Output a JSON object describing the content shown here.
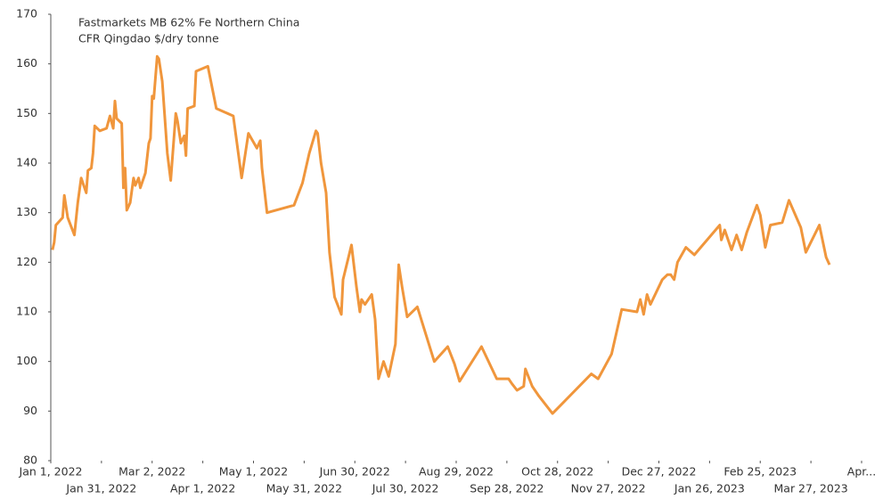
{
  "chart_data": {
    "type": "line",
    "title": "Fastmarkets MB 62% Fe Northern China",
    "subtitle": "CFR Qingdao $/dry tonne",
    "x": [
      "2022-01-02",
      "2022-01-03",
      "2022-01-04",
      "2022-01-08",
      "2022-01-09",
      "2022-01-11",
      "2022-01-15",
      "2022-01-17",
      "2022-01-19",
      "2022-01-22",
      "2022-01-23",
      "2022-01-25",
      "2022-01-26",
      "2022-01-27",
      "2022-01-30",
      "2022-02-03",
      "2022-02-05",
      "2022-02-07",
      "2022-02-08",
      "2022-02-09",
      "2022-02-12",
      "2022-02-13",
      "2022-02-14",
      "2022-02-15",
      "2022-02-17",
      "2022-02-19",
      "2022-02-20",
      "2022-02-22",
      "2022-02-23",
      "2022-02-26",
      "2022-02-28",
      "2022-03-01",
      "2022-03-02",
      "2022-03-03",
      "2022-03-05",
      "2022-03-06",
      "2022-03-08",
      "2022-03-11",
      "2022-03-13",
      "2022-03-16",
      "2022-03-17",
      "2022-03-19",
      "2022-03-21",
      "2022-03-22",
      "2022-03-23",
      "2022-03-27",
      "2022-03-28",
      "2022-04-04",
      "2022-04-09",
      "2022-04-19",
      "2022-04-24",
      "2022-04-28",
      "2022-05-03",
      "2022-05-05",
      "2022-05-06",
      "2022-05-09",
      "2022-05-25",
      "2022-05-30",
      "2022-06-03",
      "2022-06-07",
      "2022-06-08",
      "2022-06-10",
      "2022-06-13",
      "2022-06-15",
      "2022-06-18",
      "2022-06-22",
      "2022-06-23",
      "2022-06-28",
      "2022-07-01",
      "2022-07-03",
      "2022-07-04",
      "2022-07-06",
      "2022-07-10",
      "2022-07-12",
      "2022-07-14",
      "2022-07-17",
      "2022-07-18",
      "2022-07-20",
      "2022-07-24",
      "2022-07-26",
      "2022-07-28",
      "2022-07-31",
      "2022-08-06",
      "2022-08-16",
      "2022-08-24",
      "2022-08-28",
      "2022-08-31",
      "2022-09-13",
      "2022-09-22",
      "2022-09-29",
      "2022-10-01",
      "2022-10-04",
      "2022-10-08",
      "2022-10-09",
      "2022-10-13",
      "2022-10-17",
      "2022-10-25",
      "2022-11-17",
      "2022-11-21",
      "2022-11-29",
      "2022-12-05",
      "2022-12-14",
      "2022-12-16",
      "2022-12-18",
      "2022-12-20",
      "2022-12-22",
      "2022-12-29",
      "2023-01-01",
      "2023-01-03",
      "2023-01-05",
      "2023-01-07",
      "2023-01-12",
      "2023-01-17",
      "2023-02-01",
      "2023-02-02",
      "2023-02-04",
      "2023-02-08",
      "2023-02-11",
      "2023-02-14",
      "2023-02-17",
      "2023-02-23",
      "2023-02-25",
      "2023-02-28",
      "2023-03-03",
      "2023-03-10",
      "2023-03-14",
      "2023-03-21",
      "2023-03-24",
      "2023-04-01",
      "2023-04-05",
      "2023-04-07"
    ],
    "series": [
      {
        "name": "Fastmarkets MB 62% Fe Northern China",
        "color": "#f0963c",
        "values": [
          122.5,
          124,
          127.5,
          129,
          133.5,
          129,
          125.5,
          132,
          137,
          134,
          138.5,
          139,
          142,
          147.5,
          146.5,
          147,
          149.5,
          147,
          152.5,
          149,
          148,
          135,
          139,
          130.5,
          132,
          137,
          135.5,
          137,
          135,
          138,
          144,
          145,
          153.5,
          153,
          161.5,
          161,
          156.5,
          142,
          136.5,
          150,
          148.5,
          144,
          145.5,
          141.5,
          151,
          151.5,
          158.5,
          159.5,
          151,
          149.5,
          137,
          146,
          143,
          144.5,
          139,
          130,
          131.5,
          136,
          142,
          146.5,
          146,
          140,
          134,
          122,
          113,
          109.5,
          116.5,
          123.5,
          115,
          110,
          112.5,
          111.5,
          113.5,
          108.5,
          96.5,
          100,
          99,
          97,
          103.5,
          119.5,
          115,
          109,
          111,
          100,
          103,
          99.5,
          96,
          103,
          96.5,
          96.5,
          95.5,
          94.2,
          95,
          98.5,
          95,
          93,
          89.5,
          97.5,
          96.5,
          101.5,
          110.5,
          110,
          112.5,
          109.5,
          113.5,
          111.5,
          116.5,
          117.5,
          117.5,
          116.5,
          120,
          123,
          121.5,
          127.5,
          124.5,
          126.5,
          122.5,
          125.5,
          122.5,
          126,
          131.5,
          129.5,
          123,
          127.5,
          128,
          132.5,
          127,
          122,
          127.5,
          121,
          119.5
        ]
      }
    ],
    "xlim": [
      "2022-01-01",
      "2023-04-26"
    ],
    "xticks": [
      {
        "value": "2022-01-01",
        "label": "Jan 1, 2022"
      },
      {
        "value": "2022-01-31",
        "label": "Jan 31, 2022"
      },
      {
        "value": "2022-03-02",
        "label": "Mar 2, 2022"
      },
      {
        "value": "2022-04-01",
        "label": "Apr 1, 2022"
      },
      {
        "value": "2022-05-01",
        "label": "May 1, 2022"
      },
      {
        "value": "2022-05-31",
        "label": "May 31, 2022"
      },
      {
        "value": "2022-06-30",
        "label": "Jun 30, 2022"
      },
      {
        "value": "2022-07-30",
        "label": "Jul 30, 2022"
      },
      {
        "value": "2022-08-29",
        "label": "Aug 29, 2022"
      },
      {
        "value": "2022-09-28",
        "label": "Sep 28, 2022"
      },
      {
        "value": "2022-10-28",
        "label": "Oct 28, 2022"
      },
      {
        "value": "2022-11-27",
        "label": "Nov 27, 2022"
      },
      {
        "value": "2022-12-27",
        "label": "Dec 27, 2022"
      },
      {
        "value": "2023-01-26",
        "label": "Jan 26, 2023"
      },
      {
        "value": "2023-02-25",
        "label": "Feb 25, 2023"
      },
      {
        "value": "2023-03-27",
        "label": "Mar 27, 2023"
      },
      {
        "value": "2023-04-26",
        "label": "Apr..."
      }
    ],
    "ylim": [
      80,
      170
    ],
    "yticks": [
      80,
      90,
      100,
      110,
      120,
      130,
      140,
      150,
      160,
      170
    ]
  }
}
